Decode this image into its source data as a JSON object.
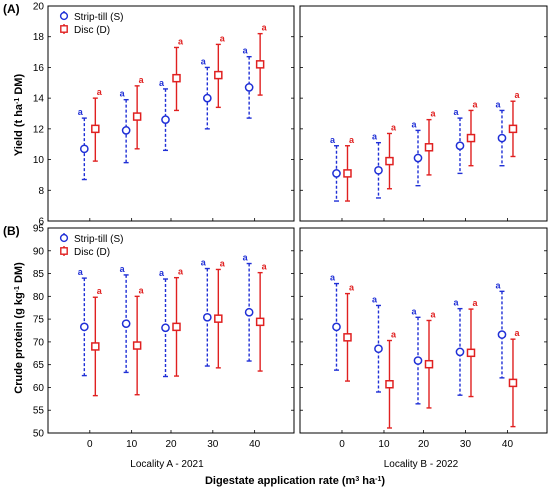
{
  "figure": {
    "panel_a_tag": "(A)",
    "panel_b_tag": "(B)",
    "y_label_a_main": "Yield (t ha",
    "y_label_a_sup": "-1",
    "y_label_a_end": " DM)",
    "y_label_b_main": "Crude protein (g kg",
    "y_label_b_sup": "-1",
    "y_label_b_end": " DM)",
    "x_label_main": "Digestate application rate (m",
    "x_label_sup1": "3",
    "x_label_mid": " ha",
    "x_label_sup2": "-1",
    "x_label_end": ")",
    "locality_left": "Locality A - 2021",
    "locality_right": "Locality B - 2022",
    "colors": {
      "strip_till": "#1f2fd6",
      "disc": "#e02020"
    }
  },
  "chart_data": [
    {
      "type": "scatter",
      "panel": "(A)",
      "ylabel": "Yield (t ha-1 DM)",
      "ylim": [
        6,
        20
      ],
      "yticks": [
        6,
        8,
        10,
        12,
        14,
        16,
        18,
        20
      ],
      "categories": [
        "0",
        "10",
        "20",
        "30",
        "40"
      ],
      "legend": [
        "Strip-till (S)",
        "Disc (D)"
      ],
      "subplots": [
        {
          "locality": "Locality A - 2021",
          "series": [
            {
              "name": "Strip-till (S)",
              "mean": [
                10.7,
                11.9,
                12.6,
                14.0,
                14.7
              ],
              "low": [
                8.7,
                9.8,
                10.6,
                12.0,
                12.7
              ],
              "high": [
                12.7,
                13.9,
                14.6,
                16.0,
                16.7
              ],
              "letters": [
                "a",
                "a",
                "a",
                "a",
                "a"
              ]
            },
            {
              "name": "Disc (D)",
              "mean": [
                12.0,
                12.8,
                15.3,
                15.5,
                16.2
              ],
              "low": [
                9.9,
                10.7,
                13.2,
                13.4,
                14.2
              ],
              "high": [
                14.0,
                14.8,
                17.3,
                17.5,
                18.2
              ],
              "letters": [
                "a",
                "a",
                "a",
                "a",
                "a"
              ]
            }
          ]
        },
        {
          "locality": "Locality B - 2022",
          "series": [
            {
              "name": "Strip-till (S)",
              "mean": [
                9.1,
                9.3,
                10.1,
                10.9,
                11.4
              ],
              "low": [
                7.3,
                7.5,
                8.3,
                9.1,
                9.6
              ],
              "high": [
                10.9,
                11.1,
                11.9,
                12.7,
                13.2
              ],
              "letters": [
                "a",
                "a",
                "a",
                "a",
                "a"
              ]
            },
            {
              "name": "Disc (D)",
              "mean": [
                9.1,
                9.9,
                10.8,
                11.4,
                12.0
              ],
              "low": [
                7.3,
                8.1,
                9.0,
                9.6,
                10.2
              ],
              "high": [
                10.9,
                11.7,
                12.6,
                13.2,
                13.8
              ],
              "letters": [
                "a",
                "a",
                "a",
                "a",
                "a"
              ]
            }
          ]
        }
      ]
    },
    {
      "type": "scatter",
      "panel": "(B)",
      "ylabel": "Crude protein (g kg-1 DM)",
      "ylim": [
        50,
        95
      ],
      "yticks": [
        50,
        55,
        60,
        65,
        70,
        75,
        80,
        85,
        90,
        95
      ],
      "categories": [
        "0",
        "10",
        "20",
        "30",
        "40"
      ],
      "xlabel": "Digestate application rate (m3 ha-1)",
      "legend": [
        "Strip-till (S)",
        "Disc (D)"
      ],
      "subplots": [
        {
          "locality": "Locality A - 2021",
          "series": [
            {
              "name": "Strip-till (S)",
              "mean": [
                73.3,
                74.0,
                73.1,
                75.4,
                76.5
              ],
              "low": [
                62.6,
                63.3,
                62.4,
                64.7,
                65.8
              ],
              "high": [
                84.0,
                84.7,
                83.8,
                86.1,
                87.2
              ],
              "letters": [
                "a",
                "a",
                "a",
                "a",
                "a"
              ]
            },
            {
              "name": "Disc (D)",
              "mean": [
                69.0,
                69.2,
                73.3,
                75.1,
                74.4
              ],
              "low": [
                58.2,
                58.4,
                62.5,
                64.3,
                63.6
              ],
              "high": [
                79.8,
                80.0,
                84.1,
                85.9,
                85.2
              ],
              "letters": [
                "a",
                "a",
                "a",
                "a",
                "a"
              ]
            }
          ]
        },
        {
          "locality": "Locality B - 2022",
          "series": [
            {
              "name": "Strip-till (S)",
              "mean": [
                73.3,
                68.5,
                65.9,
                67.8,
                71.6
              ],
              "low": [
                63.8,
                59.0,
                56.4,
                58.3,
                62.1
              ],
              "high": [
                82.8,
                78.0,
                75.4,
                77.3,
                81.1
              ],
              "letters": [
                "a",
                "a",
                "a",
                "a",
                "a"
              ]
            },
            {
              "name": "Disc (D)",
              "mean": [
                71.0,
                60.7,
                65.1,
                67.6,
                61.0
              ],
              "low": [
                61.4,
                51.1,
                55.5,
                58.0,
                51.4
              ],
              "high": [
                80.6,
                70.3,
                74.7,
                77.2,
                70.6
              ],
              "letters": [
                "a",
                "a",
                "a",
                "a",
                "a"
              ]
            }
          ]
        }
      ]
    }
  ]
}
